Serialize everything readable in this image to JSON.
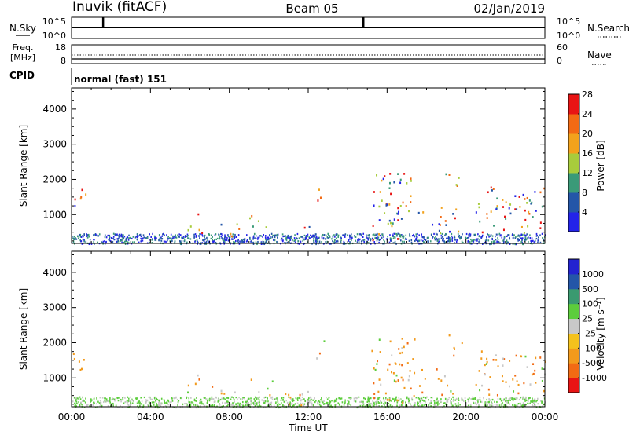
{
  "header": {
    "station": "Inuvik (fitACF)",
    "beam": "Beam 05",
    "date": "02/Jan/2019"
  },
  "noise_panel": {
    "left_label": "N.Sky",
    "right_label": "N.Search",
    "left_ticks": [
      "10^5",
      "10^0"
    ],
    "right_ticks": [
      "10^5",
      "10^0"
    ]
  },
  "freq_panel": {
    "left_label_1": "Freq.",
    "left_label_2": "[MHz]",
    "right_label": "Nave",
    "left_ticks": [
      "18",
      "8"
    ],
    "right_ticks": [
      "60",
      "0"
    ]
  },
  "cpid": {
    "label": "CPID",
    "value": "normal (fast) 151"
  },
  "chart_data": [
    {
      "type": "heatmap",
      "name": "power",
      "xlabel": "",
      "ylabel": "Slant Range [km]",
      "yticks": [
        "1000",
        "2000",
        "3000",
        "4000"
      ],
      "ylim": [
        180,
        4600
      ],
      "colorbar_label": "Power [dB]",
      "colorbar_ticks": [
        "4",
        "8",
        "12",
        "16",
        "20",
        "24",
        "28"
      ],
      "colorbar_colors": [
        "#2323e8",
        "#2456a8",
        "#3a9a78",
        "#a8cc3c",
        "#f2a21c",
        "#f26a14",
        "#e81414"
      ]
    },
    {
      "type": "heatmap",
      "name": "velocity",
      "xlabel": "Time UT",
      "ylabel": "Slant Range [km]",
      "yticks": [
        "1000",
        "2000",
        "3000",
        "4000"
      ],
      "ylim": [
        180,
        4600
      ],
      "xticks": [
        "00:00",
        "04:00",
        "08:00",
        "12:00",
        "16:00",
        "20:00",
        "00:00"
      ],
      "colorbar_label": "Velocity [m s⁻¹]",
      "colorbar_ticks": [
        "-1000",
        "-500",
        "-100",
        "-25",
        "25",
        "100",
        "500",
        "1000"
      ],
      "colorbar_colors": [
        "#e81414",
        "#f26a14",
        "#f29a1c",
        "#f4c21c",
        "#c8c8c8",
        "#5ccd3c",
        "#3a9a70",
        "#2456a8",
        "#2323d0"
      ]
    }
  ]
}
